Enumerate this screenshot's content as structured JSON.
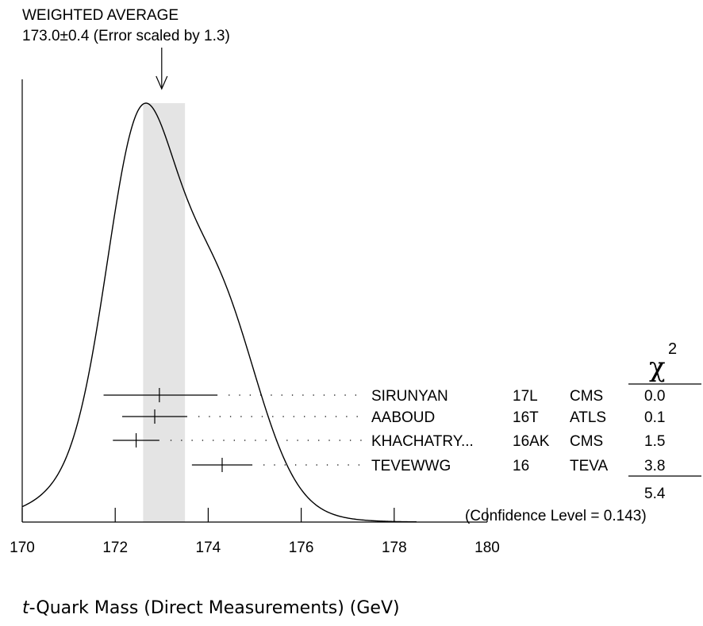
{
  "header": {
    "line1": "WEIGHTED AVERAGE",
    "line2": "173.0±0.4 (Error scaled by 1.3)"
  },
  "chart_data": {
    "type": "ideogram",
    "xlim": [
      170,
      180
    ],
    "x_ticks": [
      170,
      172,
      174,
      176,
      178,
      180
    ],
    "x_tick_labels": [
      "170",
      "172",
      "174",
      "176",
      "178",
      "180"
    ],
    "xlabel": {
      "italic": "t",
      "rest": "-Quark Mass (Direct Measurements) (GeV)"
    },
    "weighted_average": {
      "value": 173.0,
      "error": 0.4,
      "error_scale": 1.3,
      "band": [
        172.6,
        173.5
      ]
    },
    "chi2_header": "χ",
    "chi2_header_sup": "2",
    "measurements": [
      {
        "value": 172.95,
        "lo": 171.75,
        "hi": 174.2,
        "author": "SIRUNYAN",
        "ref": "17L",
        "exp": "CMS",
        "chi2": "0.0"
      },
      {
        "value": 172.85,
        "lo": 172.15,
        "hi": 173.55,
        "author": "AABOUD",
        "ref": "16T",
        "exp": "ATLS",
        "chi2": "0.1"
      },
      {
        "value": 172.45,
        "lo": 171.95,
        "hi": 172.95,
        "author": "KHACHATRY...",
        "ref": "16AK",
        "exp": "CMS",
        "chi2": "1.5"
      },
      {
        "value": 174.3,
        "lo": 173.65,
        "hi": 174.95,
        "author": "TEVEWWG",
        "ref": "16",
        "exp": "TEVA",
        "chi2": "3.8"
      }
    ],
    "chi2_total": "5.4",
    "confidence_level": "(Confidence Level = 0.143)"
  }
}
